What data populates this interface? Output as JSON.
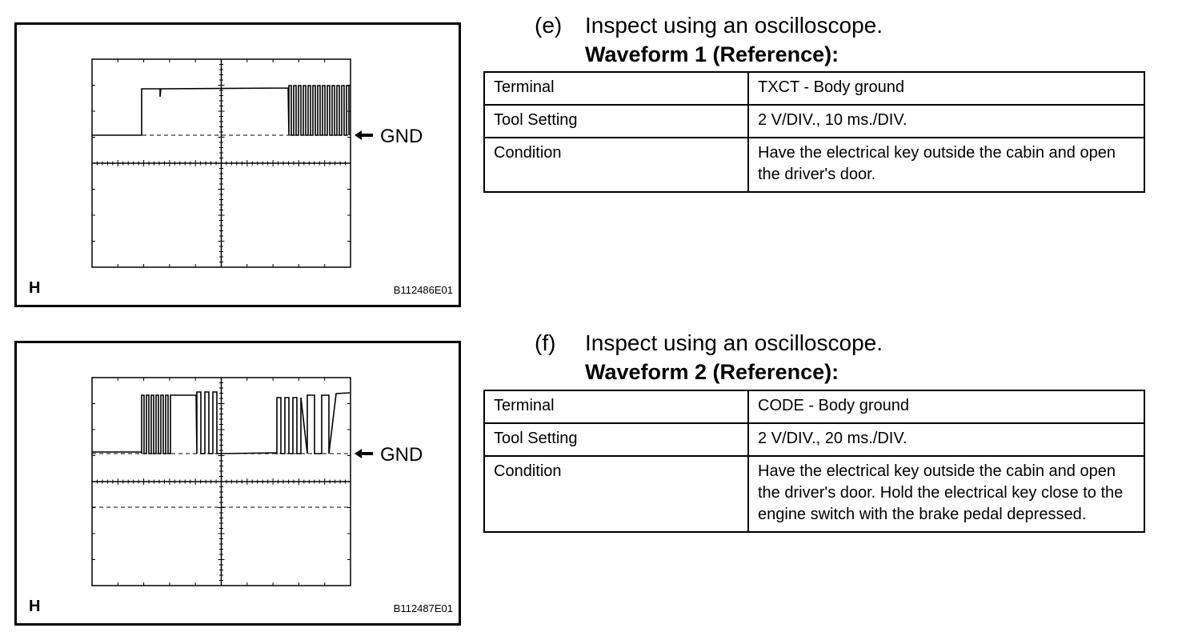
{
  "sections": [
    {
      "figure": {
        "corner_label": "H",
        "code": "B112486E01",
        "gnd_label": "GND"
      },
      "step": "(e)",
      "heading": "Inspect using an oscilloscope.",
      "subheading": "Waveform 1 (Reference):",
      "table": {
        "rows": [
          [
            "Terminal",
            "TXCT - Body ground"
          ],
          [
            "Tool Setting",
            "2 V/DIV., 10 ms./DIV."
          ],
          [
            "Condition",
            "Have the electrical key outside the cabin and open the driver's door."
          ]
        ]
      }
    },
    {
      "figure": {
        "corner_label": "H",
        "code": "B112487E01",
        "gnd_label": "GND"
      },
      "step": "(f)",
      "heading": "Inspect using an oscilloscope.",
      "subheading": "Waveform 2 (Reference):",
      "table": {
        "rows": [
          [
            "Terminal",
            "CODE - Body ground"
          ],
          [
            "Tool Setting",
            "2 V/DIV., 20 ms./DIV."
          ],
          [
            "Condition",
            "Have the electrical key outside the cabin and open the driver's door. Hold the electrical key close to the engine switch with the brake pedal depressed."
          ]
        ]
      }
    }
  ]
}
